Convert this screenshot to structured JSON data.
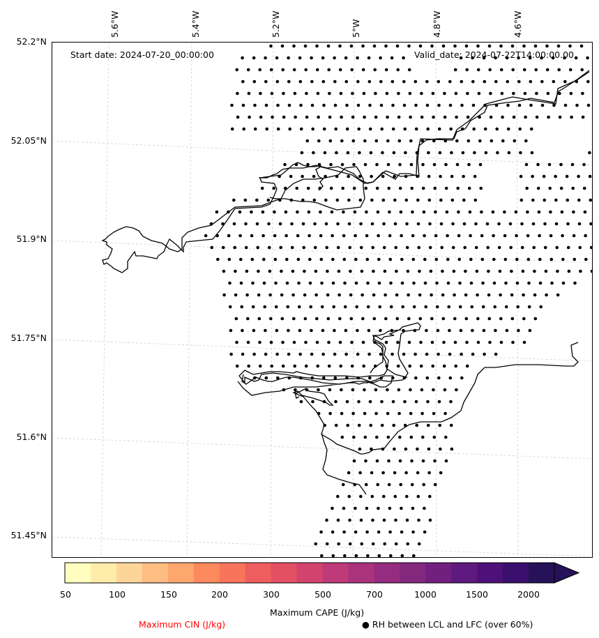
{
  "map": {
    "start_date": "Start date: 2024-07-20_00:00:00",
    "valid_date": "Valid_date: 2024-07-22T14:00:00.00",
    "lon_labels": [
      "5.6°W",
      "5.4°W",
      "5.2°W",
      "5°W",
      "4.8°W",
      "4.6°W"
    ],
    "lat_labels": [
      "52.2°N",
      "52.05°N",
      "51.9°N",
      "51.75°N",
      "51.6°N",
      "51.45°N"
    ],
    "lon_values": [
      -5.6,
      -5.4,
      -5.2,
      -5.0,
      -4.8,
      -4.6
    ],
    "lat_values": [
      52.2,
      52.05,
      51.9,
      51.75,
      51.6,
      51.45
    ],
    "dot_marker": "black-dot"
  },
  "colorbar": {
    "title": "Maximum CAPE (J/kg)",
    "ticks": [
      "50",
      "100",
      "150",
      "200",
      "300",
      "500",
      "700",
      "1000",
      "1500",
      "2000"
    ],
    "levels": [
      50,
      100,
      150,
      200,
      300,
      500,
      700,
      1000,
      1500,
      2000
    ],
    "extend": "max",
    "colors": [
      "#fffdbf",
      "#feedaa",
      "#fed598",
      "#febd83",
      "#fda76f",
      "#fc8a5e",
      "#f8755c",
      "#ef5e5e",
      "#e34f63",
      "#d3436e",
      "#be3a78",
      "#ab337c",
      "#962c7f",
      "#84287e",
      "#71207f",
      "#5e1a7e",
      "#4e1179",
      "#3a0f6d",
      "#261258"
    ]
  },
  "legend": {
    "cin_label": "Maximum CIN (J/kg)",
    "cin_color": "#ff0000",
    "rh_label": "RH between LCL and LFC (over 60%)",
    "rh_marker": "●"
  }
}
